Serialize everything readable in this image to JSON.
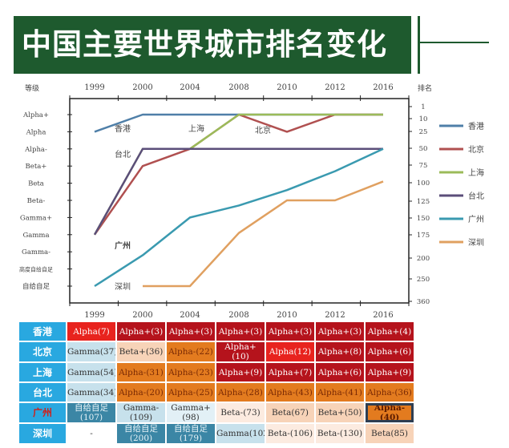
{
  "title": "中国主要世界城市排名变化",
  "chart_data": {
    "type": "line",
    "title": "中国主要世界城市排名变化",
    "left_axis_label": "等级",
    "right_axis_label": "排名",
    "x": [
      "1999",
      "2000",
      "2004",
      "2008",
      "2010",
      "2012",
      "2016"
    ],
    "grade_levels": [
      "Alpha+",
      "Alpha",
      "Alpha-",
      "Beta+",
      "Beta",
      "Beta-",
      "Gamma+",
      "Gamma",
      "Gamma-",
      "高度自给自足",
      "自给自足"
    ],
    "rank_ticks": [
      "1",
      "10",
      "25",
      "50",
      "75",
      "100",
      "125",
      "150",
      "175",
      "200",
      "250",
      "360"
    ],
    "series": [
      {
        "name": "香港",
        "color": "#4f7fa8",
        "values": [
          1,
          0,
          0,
          0,
          0,
          0,
          0
        ]
      },
      {
        "name": "北京",
        "color": "#b05050",
        "values": [
          7,
          3,
          2,
          0,
          1,
          0,
          0
        ]
      },
      {
        "name": "上海",
        "color": "#9bbb59",
        "values": [
          7,
          2,
          2,
          0,
          0,
          0,
          0
        ]
      },
      {
        "name": "台北",
        "color": "#5b4e7a",
        "values": [
          7,
          2,
          2,
          2,
          2,
          2,
          2
        ]
      },
      {
        "name": "广州",
        "color": "#3a9ab0",
        "values": [
          10,
          8.2,
          6,
          5.3,
          4.4,
          3.3,
          2
        ]
      },
      {
        "name": "深圳",
        "color": "#e0a060",
        "values": [
          null,
          10,
          10,
          6.9,
          5,
          5,
          3.9
        ]
      }
    ],
    "inline_labels": [
      "香港",
      "上海",
      "北京",
      "台北",
      "广州",
      "深圳"
    ]
  },
  "table": {
    "rows": [
      {
        "city": "香港",
        "cells": [
          {
            "t": "Alpha(7)",
            "c": "br"
          },
          {
            "t": "Alpha+(3)",
            "c": "dr"
          },
          {
            "t": "Alpha+(3)",
            "c": "dr"
          },
          {
            "t": "Alpha+(3)",
            "c": "dr"
          },
          {
            "t": "Alpha+(3)",
            "c": "dr"
          },
          {
            "t": "Alpha+(3)",
            "c": "dr"
          },
          {
            "t": "Alpha+(4)",
            "c": "dr"
          }
        ]
      },
      {
        "city": "北京",
        "cells": [
          {
            "t": "Gamma(37)",
            "c": "pb"
          },
          {
            "t": "Beta+(36)",
            "c": "pe"
          },
          {
            "t": "Alpha-(22)",
            "c": "or"
          },
          {
            "t": "Alpha+(10)",
            "c": "dr"
          },
          {
            "t": "Alpha(12)",
            "c": "br"
          },
          {
            "t": "Alpha+(8)",
            "c": "dr"
          },
          {
            "t": "Alpha+(6)",
            "c": "dr"
          }
        ]
      },
      {
        "city": "上海",
        "cells": [
          {
            "t": "Gamma(54)",
            "c": "pb"
          },
          {
            "t": "Alpha-(31)",
            "c": "or"
          },
          {
            "t": "Alpha-(23)",
            "c": "or"
          },
          {
            "t": "Alpha+(9)",
            "c": "dr"
          },
          {
            "t": "Alpha+(7)",
            "c": "dr"
          },
          {
            "t": "Alpha+(6)",
            "c": "dr"
          },
          {
            "t": "Alpha+(9)",
            "c": "dr"
          }
        ]
      },
      {
        "city": "台北",
        "cells": [
          {
            "t": "Gamma(34)",
            "c": "pb"
          },
          {
            "t": "Alpha-(20)",
            "c": "or"
          },
          {
            "t": "Alpha-(25)",
            "c": "or"
          },
          {
            "t": "Alpha-(28)",
            "c": "or"
          },
          {
            "t": "Alpha-(43)",
            "c": "or"
          },
          {
            "t": "Alpha-(41)",
            "c": "or"
          },
          {
            "t": "Alpha-(36)",
            "c": "or"
          }
        ]
      },
      {
        "city": "广州",
        "cells": [
          {
            "t": "自给自足(107)",
            "c": "tl"
          },
          {
            "t": "Gamma-(109)",
            "c": "pb"
          },
          {
            "t": "Gamma+(98)",
            "c": "vb"
          },
          {
            "t": "Beta-(73)",
            "c": "wp"
          },
          {
            "t": "Beta(67)",
            "c": "pe"
          },
          {
            "t": "Beta+(50)",
            "c": "pe"
          },
          {
            "t": "Alpha-(40)",
            "c": "ob"
          }
        ]
      },
      {
        "city": "深圳",
        "cells": [
          {
            "t": "-",
            "c": "wh"
          },
          {
            "t": "自给自足(200)",
            "c": "tl"
          },
          {
            "t": "自给自足(179)",
            "c": "tl"
          },
          {
            "t": "Gamma(102)",
            "c": "pb"
          },
          {
            "t": "Beta-(106)",
            "c": "wp"
          },
          {
            "t": "Beta-(130)",
            "c": "wp"
          },
          {
            "t": "Beta(85)",
            "c": "pe"
          }
        ]
      }
    ]
  }
}
